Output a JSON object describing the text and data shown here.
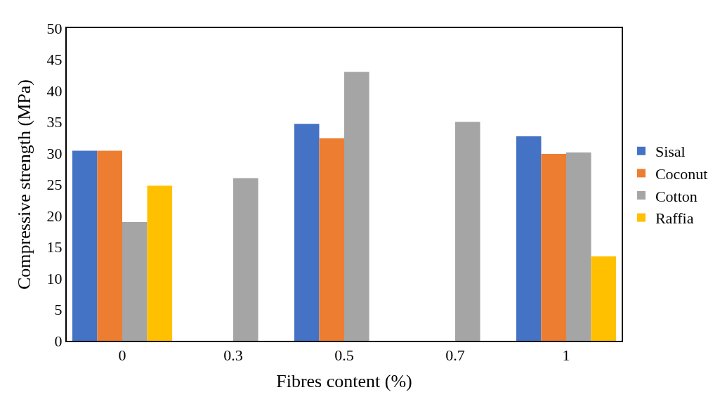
{
  "chart_data": {
    "type": "bar",
    "xlabel": "Fibres content (%)",
    "ylabel": "Compressive strength (MPa)",
    "categories": [
      "0",
      "0.3",
      "0.5",
      "0.7",
      "1"
    ],
    "series": [
      {
        "name": "Sisal",
        "color": "#4472c4",
        "values": [
          30.4,
          null,
          34.7,
          null,
          32.7
        ]
      },
      {
        "name": "Coconut",
        "color": "#ed7d31",
        "values": [
          30.4,
          null,
          32.4,
          null,
          29.9
        ]
      },
      {
        "name": "Cotton",
        "color": "#a5a5a5",
        "values": [
          19.0,
          26.0,
          43.0,
          35.0,
          30.1
        ]
      },
      {
        "name": "Raffia",
        "color": "#ffc000",
        "values": [
          24.8,
          null,
          null,
          null,
          13.5
        ]
      }
    ],
    "ylim": [
      0,
      50
    ],
    "yticks": [
      0,
      5,
      10,
      15,
      20,
      25,
      30,
      35,
      40,
      45,
      50
    ],
    "grid": false,
    "legend": "right"
  }
}
